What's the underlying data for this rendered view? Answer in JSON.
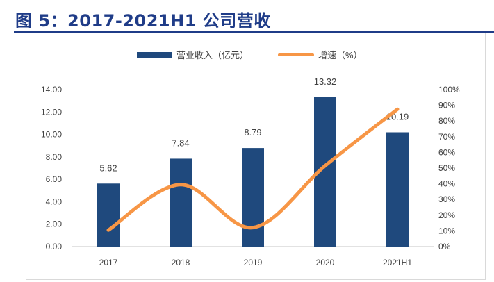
{
  "title": "图 5：2017-2021H1 公司营收",
  "chart_data": {
    "type": "bar+line",
    "categories": [
      "2017",
      "2018",
      "2019",
      "2020",
      "2021H1"
    ],
    "series": [
      {
        "name": "营业收入（亿元）",
        "type": "bar",
        "axis": "left",
        "values": [
          5.62,
          7.84,
          8.79,
          13.32,
          10.19
        ],
        "color": "#1f497d"
      },
      {
        "name": "增速（%）",
        "type": "line",
        "axis": "right",
        "values": [
          10.5,
          39.5,
          12.1,
          51.5,
          87.5
        ],
        "color": "#f79646"
      }
    ],
    "data_labels": [
      "5.62",
      "7.84",
      "8.79",
      "13.32",
      "10.19"
    ],
    "left_axis": {
      "range": [
        0,
        14
      ],
      "ticks": [
        "0.00",
        "2.00",
        "4.00",
        "6.00",
        "8.00",
        "10.00",
        "12.00",
        "14.00"
      ]
    },
    "right_axis": {
      "range": [
        0,
        100
      ],
      "ticks": [
        "0%",
        "10%",
        "20%",
        "30%",
        "40%",
        "50%",
        "60%",
        "70%",
        "80%",
        "90%",
        "100%"
      ]
    },
    "legend": "top",
    "grid": false
  }
}
